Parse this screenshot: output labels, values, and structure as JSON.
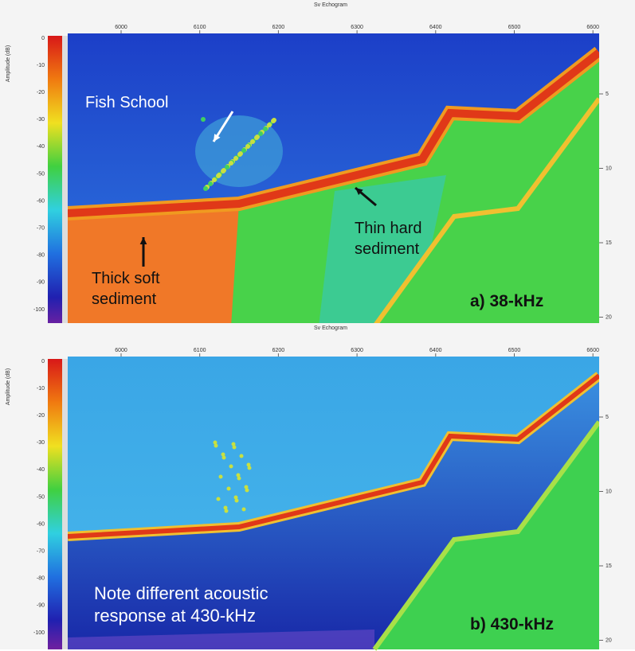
{
  "panels": [
    {
      "title": "Sv Echogram",
      "x_ticks": [
        6000,
        6100,
        6200,
        6300,
        6400,
        6500,
        6600
      ],
      "amplitude_label": "Amplitude (dB)",
      "amplitude_ticks": [
        0,
        -10,
        -20,
        -30,
        -40,
        -50,
        -60,
        -70,
        -80,
        -90,
        -100
      ],
      "depth_ticks": [
        5,
        10,
        15,
        20
      ],
      "annotations": [
        "Fish School",
        "Thick soft sediment",
        "Thin hard sediment"
      ],
      "frequency_label": "a) 38-kHz"
    },
    {
      "title": "Sv Echogram",
      "x_ticks": [
        6000,
        6100,
        6200,
        6300,
        6400,
        6500,
        6600
      ],
      "amplitude_label": "Amplitude (dB)",
      "amplitude_ticks": [
        0,
        -10,
        -20,
        -30,
        -40,
        -50,
        -60,
        -70,
        -80,
        -90,
        -100
      ],
      "depth_ticks": [
        5,
        10,
        15,
        20
      ],
      "annotations": [
        "Note different acoustic response at 430-kHz"
      ],
      "frequency_label": "b) 430-kHz"
    }
  ]
}
